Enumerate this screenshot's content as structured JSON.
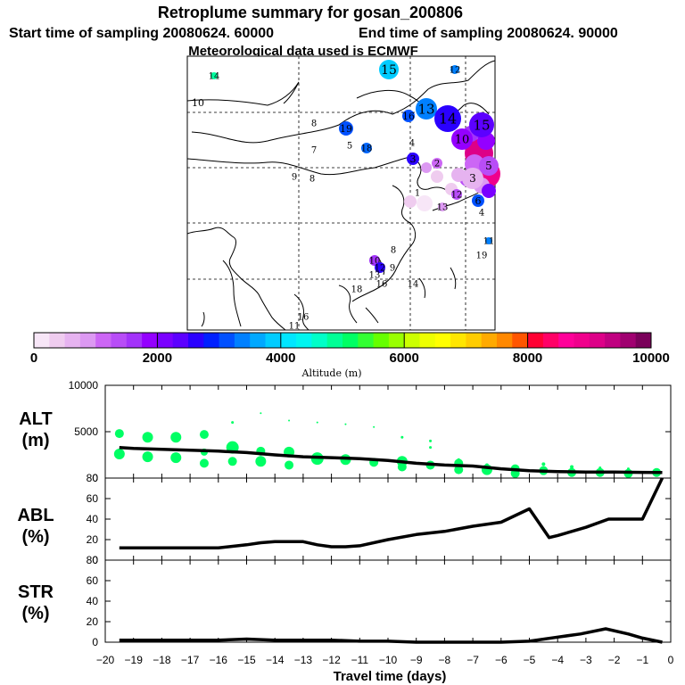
{
  "header": {
    "title": "Retroplume summary for gosan_200806",
    "line2_start": "Start time of sampling 20080624. 60000",
    "line2_end": "End time of sampling 20080624. 90000",
    "line3": "Meteorological data used is ECMWF"
  },
  "colorbar": {
    "title": "Altitude (m)",
    "tick_labels": [
      "0",
      "2000",
      "4000",
      "6000",
      "8000",
      "10000"
    ],
    "colors": [
      "#f7e6f7",
      "#efccef",
      "#e6b3f0",
      "#dc99f2",
      "#cc66f5",
      "#b84df7",
      "#a333fa",
      "#9400ff",
      "#7a00ff",
      "#5c00ff",
      "#2a00ff",
      "#0020ff",
      "#0050ff",
      "#0080ff",
      "#00a8ff",
      "#00ccff",
      "#00e6ff",
      "#00f5f0",
      "#00ffc8",
      "#00ff96",
      "#00ff64",
      "#33ff33",
      "#66ff00",
      "#99ff00",
      "#ccff00",
      "#eeff00",
      "#ffff00",
      "#ffe600",
      "#ffcc00",
      "#ffaa00",
      "#ff8800",
      "#ff5500",
      "#ff0033",
      "#ff0066",
      "#ff0099",
      "#f0008c",
      "#dd0088",
      "#c00080",
      "#a00070",
      "#7a005a"
    ]
  },
  "map": {
    "labels": [
      {
        "t": "14",
        "c": "#00ffa0"
      },
      {
        "t": "15",
        "c": "#00ccff"
      },
      {
        "t": "12",
        "c": "#0080ff"
      },
      {
        "t": "10",
        "c": "#ffffff"
      },
      {
        "t": "8",
        "c": "#ffffff"
      },
      {
        "t": "19",
        "c": "#0050ff"
      },
      {
        "t": "5",
        "c": "#ffffff"
      },
      {
        "t": "7",
        "c": "#ffffff"
      },
      {
        "t": "18",
        "c": "#0066ff"
      },
      {
        "t": "9",
        "c": "#ffffff"
      },
      {
        "t": "8",
        "c": "#ffffff"
      },
      {
        "t": "16",
        "c": "#0050ff"
      },
      {
        "t": "13",
        "c": "#0080ff"
      },
      {
        "t": "14",
        "c": "#2a00ff"
      },
      {
        "t": "4",
        "c": "#ffffff"
      },
      {
        "t": "10",
        "c": "#9400ff"
      },
      {
        "t": "3",
        "c": "#2a00ff"
      },
      {
        "t": "2",
        "c": "#cc66f5"
      },
      {
        "t": "1",
        "c": "#e6b3f0"
      },
      {
        "t": "13",
        "c": "#dc99f2"
      },
      {
        "t": "12",
        "c": "#b84df7"
      },
      {
        "t": "6",
        "c": "#0050ff"
      },
      {
        "t": "4",
        "c": "#ffffff"
      },
      {
        "t": "11",
        "c": "#0080ff"
      },
      {
        "t": "19",
        "c": "#00ccff"
      },
      {
        "t": "8",
        "c": "#dc99f2"
      },
      {
        "t": "10",
        "c": "#a333fa"
      },
      {
        "t": "12",
        "c": "#2a00ff"
      },
      {
        "t": "9",
        "c": "#b84df7"
      },
      {
        "t": "13",
        "c": "#0050ff"
      },
      {
        "t": "14",
        "c": "#0080ff"
      },
      {
        "t": "18",
        "c": "#00ccff"
      },
      {
        "t": "16",
        "c": "#00ffa0"
      },
      {
        "t": "11",
        "c": "#0080ff"
      },
      {
        "t": "16",
        "c": "#0080ff"
      },
      {
        "t": "15",
        "c": "#5c00ff"
      },
      {
        "t": "3",
        "c": "#e6b3f0"
      },
      {
        "t": "5",
        "c": "#b84df7"
      }
    ]
  },
  "chart_data": [
    {
      "type": "scatter+line",
      "panel": "ALT",
      "ylabel": "ALT\n(m)",
      "ylim": [
        0,
        10000
      ],
      "yticks": [
        0,
        5000,
        10000
      ],
      "xlim": [
        -20,
        0
      ],
      "line": {
        "x": [
          -19.5,
          -19,
          -18,
          -17,
          -16,
          -15,
          -14,
          -13,
          -12,
          -11,
          -10,
          -9,
          -8,
          -7,
          -6,
          -5,
          -4,
          -3,
          -2,
          -1,
          -0.3
        ],
        "y": [
          3300,
          3200,
          3100,
          3000,
          2900,
          2750,
          2500,
          2300,
          2200,
          2100,
          1900,
          1600,
          1400,
          1300,
          1000,
          800,
          700,
          650,
          650,
          620,
          600
        ]
      },
      "points": [
        {
          "x": -19.5,
          "y": 4800,
          "r": 5
        },
        {
          "x": -19.5,
          "y": 2600,
          "r": 6
        },
        {
          "x": -18.5,
          "y": 4400,
          "r": 6
        },
        {
          "x": -18.5,
          "y": 2300,
          "r": 6
        },
        {
          "x": -17.5,
          "y": 4400,
          "r": 6
        },
        {
          "x": -17.5,
          "y": 2200,
          "r": 6
        },
        {
          "x": -16.5,
          "y": 4700,
          "r": 5
        },
        {
          "x": -16.5,
          "y": 1600,
          "r": 5
        },
        {
          "x": -16.5,
          "y": 2800,
          "r": 4
        },
        {
          "x": -15.5,
          "y": 3300,
          "r": 7
        },
        {
          "x": -15.5,
          "y": 1800,
          "r": 5
        },
        {
          "x": -15.5,
          "y": 6000,
          "r": 1.5
        },
        {
          "x": -14.5,
          "y": 2900,
          "r": 5
        },
        {
          "x": -14.5,
          "y": 1800,
          "r": 6
        },
        {
          "x": -14.5,
          "y": 7000,
          "r": 1
        },
        {
          "x": -13.5,
          "y": 2800,
          "r": 6
        },
        {
          "x": -13.5,
          "y": 1400,
          "r": 5
        },
        {
          "x": -13.5,
          "y": 6200,
          "r": 1
        },
        {
          "x": -12.5,
          "y": 2100,
          "r": 7
        },
        {
          "x": -12.5,
          "y": 6000,
          "r": 1
        },
        {
          "x": -11.5,
          "y": 2000,
          "r": 6
        },
        {
          "x": -11.5,
          "y": 5800,
          "r": 1
        },
        {
          "x": -10.5,
          "y": 1700,
          "r": 5
        },
        {
          "x": -10.5,
          "y": 5500,
          "r": 1
        },
        {
          "x": -9.5,
          "y": 1800,
          "r": 6
        },
        {
          "x": -9.5,
          "y": 1200,
          "r": 5
        },
        {
          "x": -9.5,
          "y": 4400,
          "r": 1.5
        },
        {
          "x": -8.5,
          "y": 1400,
          "r": 5
        },
        {
          "x": -8.5,
          "y": 3300,
          "r": 1.5
        },
        {
          "x": -8.5,
          "y": 4000,
          "r": 1.5
        },
        {
          "x": -7.5,
          "y": 1600,
          "r": 5
        },
        {
          "x": -7.5,
          "y": 900,
          "r": 5
        },
        {
          "x": -7.5,
          "y": 2000,
          "r": 1.5
        },
        {
          "x": -6.5,
          "y": 900,
          "r": 6
        },
        {
          "x": -6.5,
          "y": 1400,
          "r": 2
        },
        {
          "x": -5.5,
          "y": 1000,
          "r": 5
        },
        {
          "x": -5.5,
          "y": 500,
          "r": 5
        },
        {
          "x": -4.5,
          "y": 800,
          "r": 5
        },
        {
          "x": -4.5,
          "y": 1500,
          "r": 2
        },
        {
          "x": -3.5,
          "y": 600,
          "r": 5
        },
        {
          "x": -3.5,
          "y": 1200,
          "r": 2
        },
        {
          "x": -2.5,
          "y": 600,
          "r": 5
        },
        {
          "x": -2.5,
          "y": 1100,
          "r": 1.5
        },
        {
          "x": -1.5,
          "y": 500,
          "r": 5
        },
        {
          "x": -1.5,
          "y": 1000,
          "r": 1.5
        },
        {
          "x": -0.5,
          "y": 600,
          "r": 5
        }
      ]
    },
    {
      "type": "line",
      "panel": "ABL",
      "ylabel": "ABL\n(%)",
      "ylim": [
        0,
        80
      ],
      "yticks": [
        0,
        20,
        40,
        60,
        80
      ],
      "x": [
        -19.5,
        -19,
        -18,
        -17,
        -16,
        -15,
        -14.5,
        -14,
        -13.5,
        -13,
        -12.5,
        -12,
        -11.5,
        -11,
        -10,
        -9,
        -8,
        -7,
        -6,
        -5,
        -4.3,
        -4,
        -3,
        -2.2,
        -1.5,
        -1,
        -0.3
      ],
      "y": [
        12,
        12,
        12,
        12,
        12,
        15,
        17,
        18,
        18,
        18,
        15,
        13,
        13,
        14,
        20,
        25,
        28,
        33,
        37,
        50,
        22,
        24,
        32,
        40,
        40,
        40,
        80
      ]
    },
    {
      "type": "line",
      "panel": "STR",
      "ylabel": "STR\n(%)",
      "ylim": [
        0,
        80
      ],
      "yticks": [
        0,
        20,
        40,
        60,
        80
      ],
      "xlabel": "Travel time (days)",
      "xticks": [
        -20,
        -19,
        -18,
        -17,
        -16,
        -15,
        -14,
        -13,
        -12,
        -11,
        -10,
        -9,
        -8,
        -7,
        -6,
        -5,
        -4,
        -3,
        -2,
        -1,
        0
      ],
      "x": [
        -19.5,
        -18,
        -17,
        -16,
        -15,
        -14,
        -13,
        -12,
        -11,
        -10,
        -9,
        -8,
        -7,
        -6,
        -5,
        -4,
        -3.2,
        -2.3,
        -1.5,
        -1,
        -0.3
      ],
      "y": [
        2,
        2,
        2,
        2,
        3,
        2,
        2,
        2,
        1,
        1,
        0,
        0,
        0,
        0,
        1,
        5,
        8,
        13,
        8,
        4,
        0
      ]
    }
  ],
  "panel_labels": {
    "alt": [
      "ALT",
      "(m)"
    ],
    "abl": [
      "ABL",
      "(%)"
    ],
    "str": [
      "STR",
      "(%)"
    ]
  },
  "x_axis": {
    "title": "Travel time (days)",
    "ticks": [
      "−20",
      "−19",
      "−18",
      "−17",
      "−16",
      "−15",
      "−14",
      "−13",
      "−12",
      "−11",
      "−10",
      "−9",
      "−8",
      "−7",
      "−6",
      "−5",
      "−4",
      "−3",
      "−2",
      "−1",
      "0"
    ]
  }
}
